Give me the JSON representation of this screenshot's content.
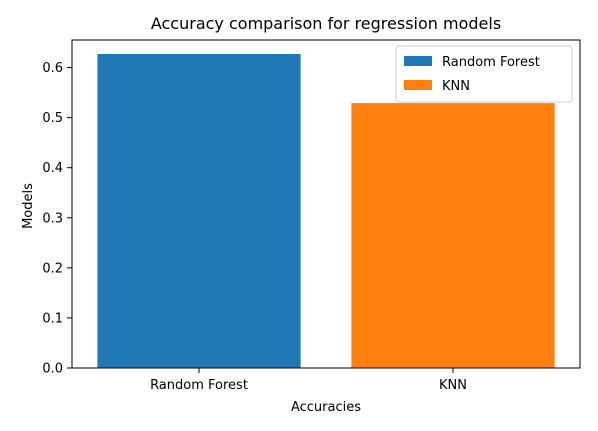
{
  "chart_data": {
    "type": "bar",
    "title": "Accuracy comparison for regression models",
    "xlabel": "Accuracies",
    "ylabel": "Models",
    "categories": [
      "Random Forest",
      "KNN"
    ],
    "values": [
      0.627,
      0.529
    ],
    "colors": [
      "#1f77b4",
      "#ff7f0e"
    ],
    "ylim": [
      0,
      0.655
    ],
    "yticks": [
      "0.0",
      "0.1",
      "0.2",
      "0.3",
      "0.4",
      "0.5",
      "0.6"
    ],
    "grid": false,
    "legend": {
      "placement": "top-right",
      "entries": [
        {
          "label": "Random Forest",
          "color": "#1f77b4"
        },
        {
          "label": "KNN",
          "color": "#ff7f0e"
        }
      ]
    }
  }
}
